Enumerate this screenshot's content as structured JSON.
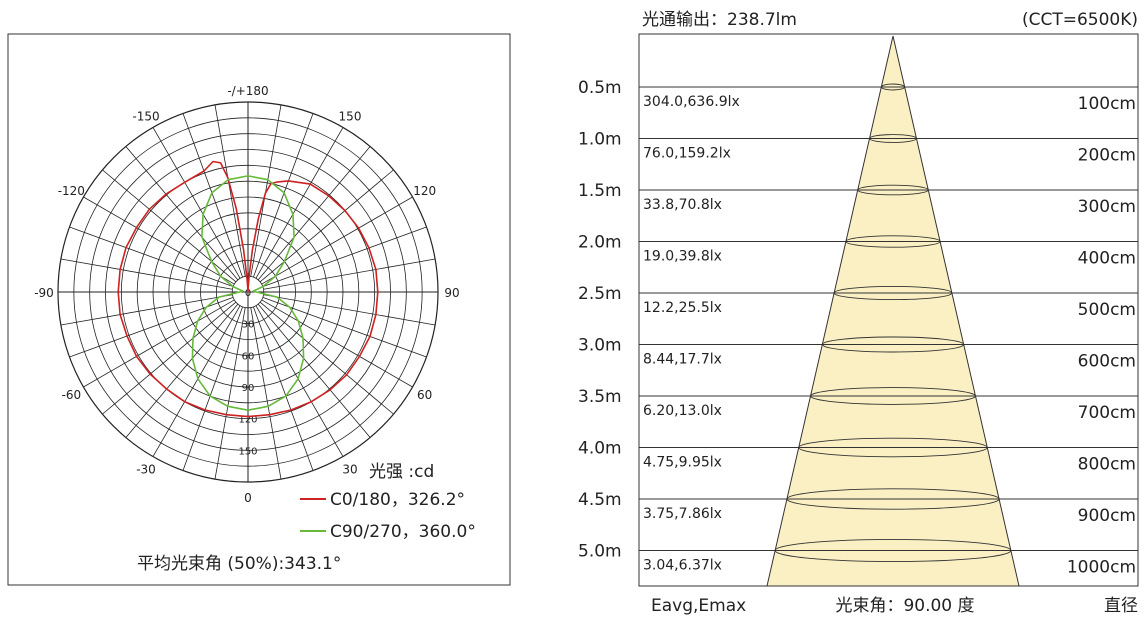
{
  "polar": {
    "angle_labels": [
      "-/+180",
      "150",
      "120",
      "90",
      "60",
      "30",
      "0",
      "-30",
      "-60",
      "-90",
      "-120",
      "-150"
    ],
    "radial_ticks": [
      "0",
      "30",
      "60",
      "90",
      "120",
      "150"
    ],
    "unit_label": "光强 :cd",
    "legend": [
      {
        "label": "C0/180，326.2°",
        "color": "#cc2222"
      },
      {
        "label": "C90/270，360.0°",
        "color": "#66b93a"
      }
    ],
    "beam_angle_text": "平均光束角 (50%):343.1°"
  },
  "cone": {
    "flux_text": "光通输出：238.7lm",
    "cct_text": "(CCT=6500K)",
    "footer_left": "Eavg,Emax",
    "footer_center": "光束角：90.00 度",
    "footer_right": "直径"
  },
  "chart_data": [
    {
      "type": "line",
      "subtype": "polar",
      "unit": "cd",
      "radial_range": [
        0,
        180
      ],
      "radial_ticks": [
        0,
        30,
        60,
        90,
        120,
        150
      ],
      "angle_range": [
        -180,
        180
      ],
      "series": [
        {
          "name": "C0/180",
          "beam_angle": "326.2°",
          "color": "#cc2222",
          "angles": [
            0,
            10,
            20,
            30,
            40,
            50,
            60,
            70,
            80,
            90,
            100,
            110,
            120,
            130,
            140,
            150,
            160,
            165,
            168,
            170,
            172,
            174,
            176,
            178,
            180,
            -180,
            -178,
            -176,
            -174,
            -172,
            -170,
            -168,
            -165,
            -160,
            -150,
            -140,
            -130,
            -120,
            -110,
            -100,
            -90,
            -80,
            -70,
            -60,
            -50,
            -40,
            -30,
            -20,
            -10,
            0
          ],
          "values": [
            118,
            118,
            119,
            120,
            121,
            122,
            122,
            123,
            123,
            123,
            123,
            122,
            121,
            120,
            119,
            118,
            112,
            108,
            105,
            95,
            70,
            40,
            15,
            3,
            0,
            0,
            2,
            12,
            40,
            80,
            110,
            125,
            128,
            122,
            120,
            121,
            122,
            122,
            123,
            123,
            123,
            123,
            122,
            122,
            121,
            120,
            120,
            119,
            118,
            118
          ]
        },
        {
          "name": "C90/270",
          "beam_angle": "360.0°",
          "color": "#66b93a",
          "angles": [
            0,
            10,
            20,
            30,
            40,
            50,
            60,
            70,
            80,
            90,
            100,
            110,
            120,
            130,
            140,
            150,
            160,
            170,
            180,
            -180,
            -170,
            -160,
            -150,
            -140,
            -130,
            -120,
            -110,
            -100,
            -90,
            -80,
            -70,
            -60,
            -50,
            -40,
            -30,
            -20,
            -10,
            0
          ],
          "values": [
            112,
            110,
            105,
            95,
            82,
            68,
            55,
            42,
            28,
            8,
            5,
            15,
            30,
            45,
            68,
            85,
            100,
            108,
            110,
            110,
            108,
            100,
            85,
            68,
            45,
            30,
            15,
            5,
            8,
            28,
            42,
            55,
            68,
            82,
            95,
            105,
            110,
            112
          ]
        }
      ]
    },
    {
      "type": "table",
      "subtype": "illuminance-cone",
      "beam_angle": 90.0,
      "rows": [
        {
          "distance": "0.5m",
          "eavg_emax": "304.0,636.9lx",
          "diameter": "100cm"
        },
        {
          "distance": "1.0m",
          "eavg_emax": "76.0,159.2lx",
          "diameter": "200cm"
        },
        {
          "distance": "1.5m",
          "eavg_emax": "33.8,70.8lx",
          "diameter": "300cm"
        },
        {
          "distance": "2.0m",
          "eavg_emax": "19.0,39.8lx",
          "diameter": "400cm"
        },
        {
          "distance": "2.5m",
          "eavg_emax": "12.2,25.5lx",
          "diameter": "500cm"
        },
        {
          "distance": "3.0m",
          "eavg_emax": "8.44,17.7lx",
          "diameter": "600cm"
        },
        {
          "distance": "3.5m",
          "eavg_emax": "6.20,13.0lx",
          "diameter": "700cm"
        },
        {
          "distance": "4.0m",
          "eavg_emax": "4.75,9.95lx",
          "diameter": "800cm"
        },
        {
          "distance": "4.5m",
          "eavg_emax": "3.75,7.86lx",
          "diameter": "900cm"
        },
        {
          "distance": "5.0m",
          "eavg_emax": "3.04,6.37lx",
          "diameter": "1000cm"
        }
      ]
    }
  ]
}
